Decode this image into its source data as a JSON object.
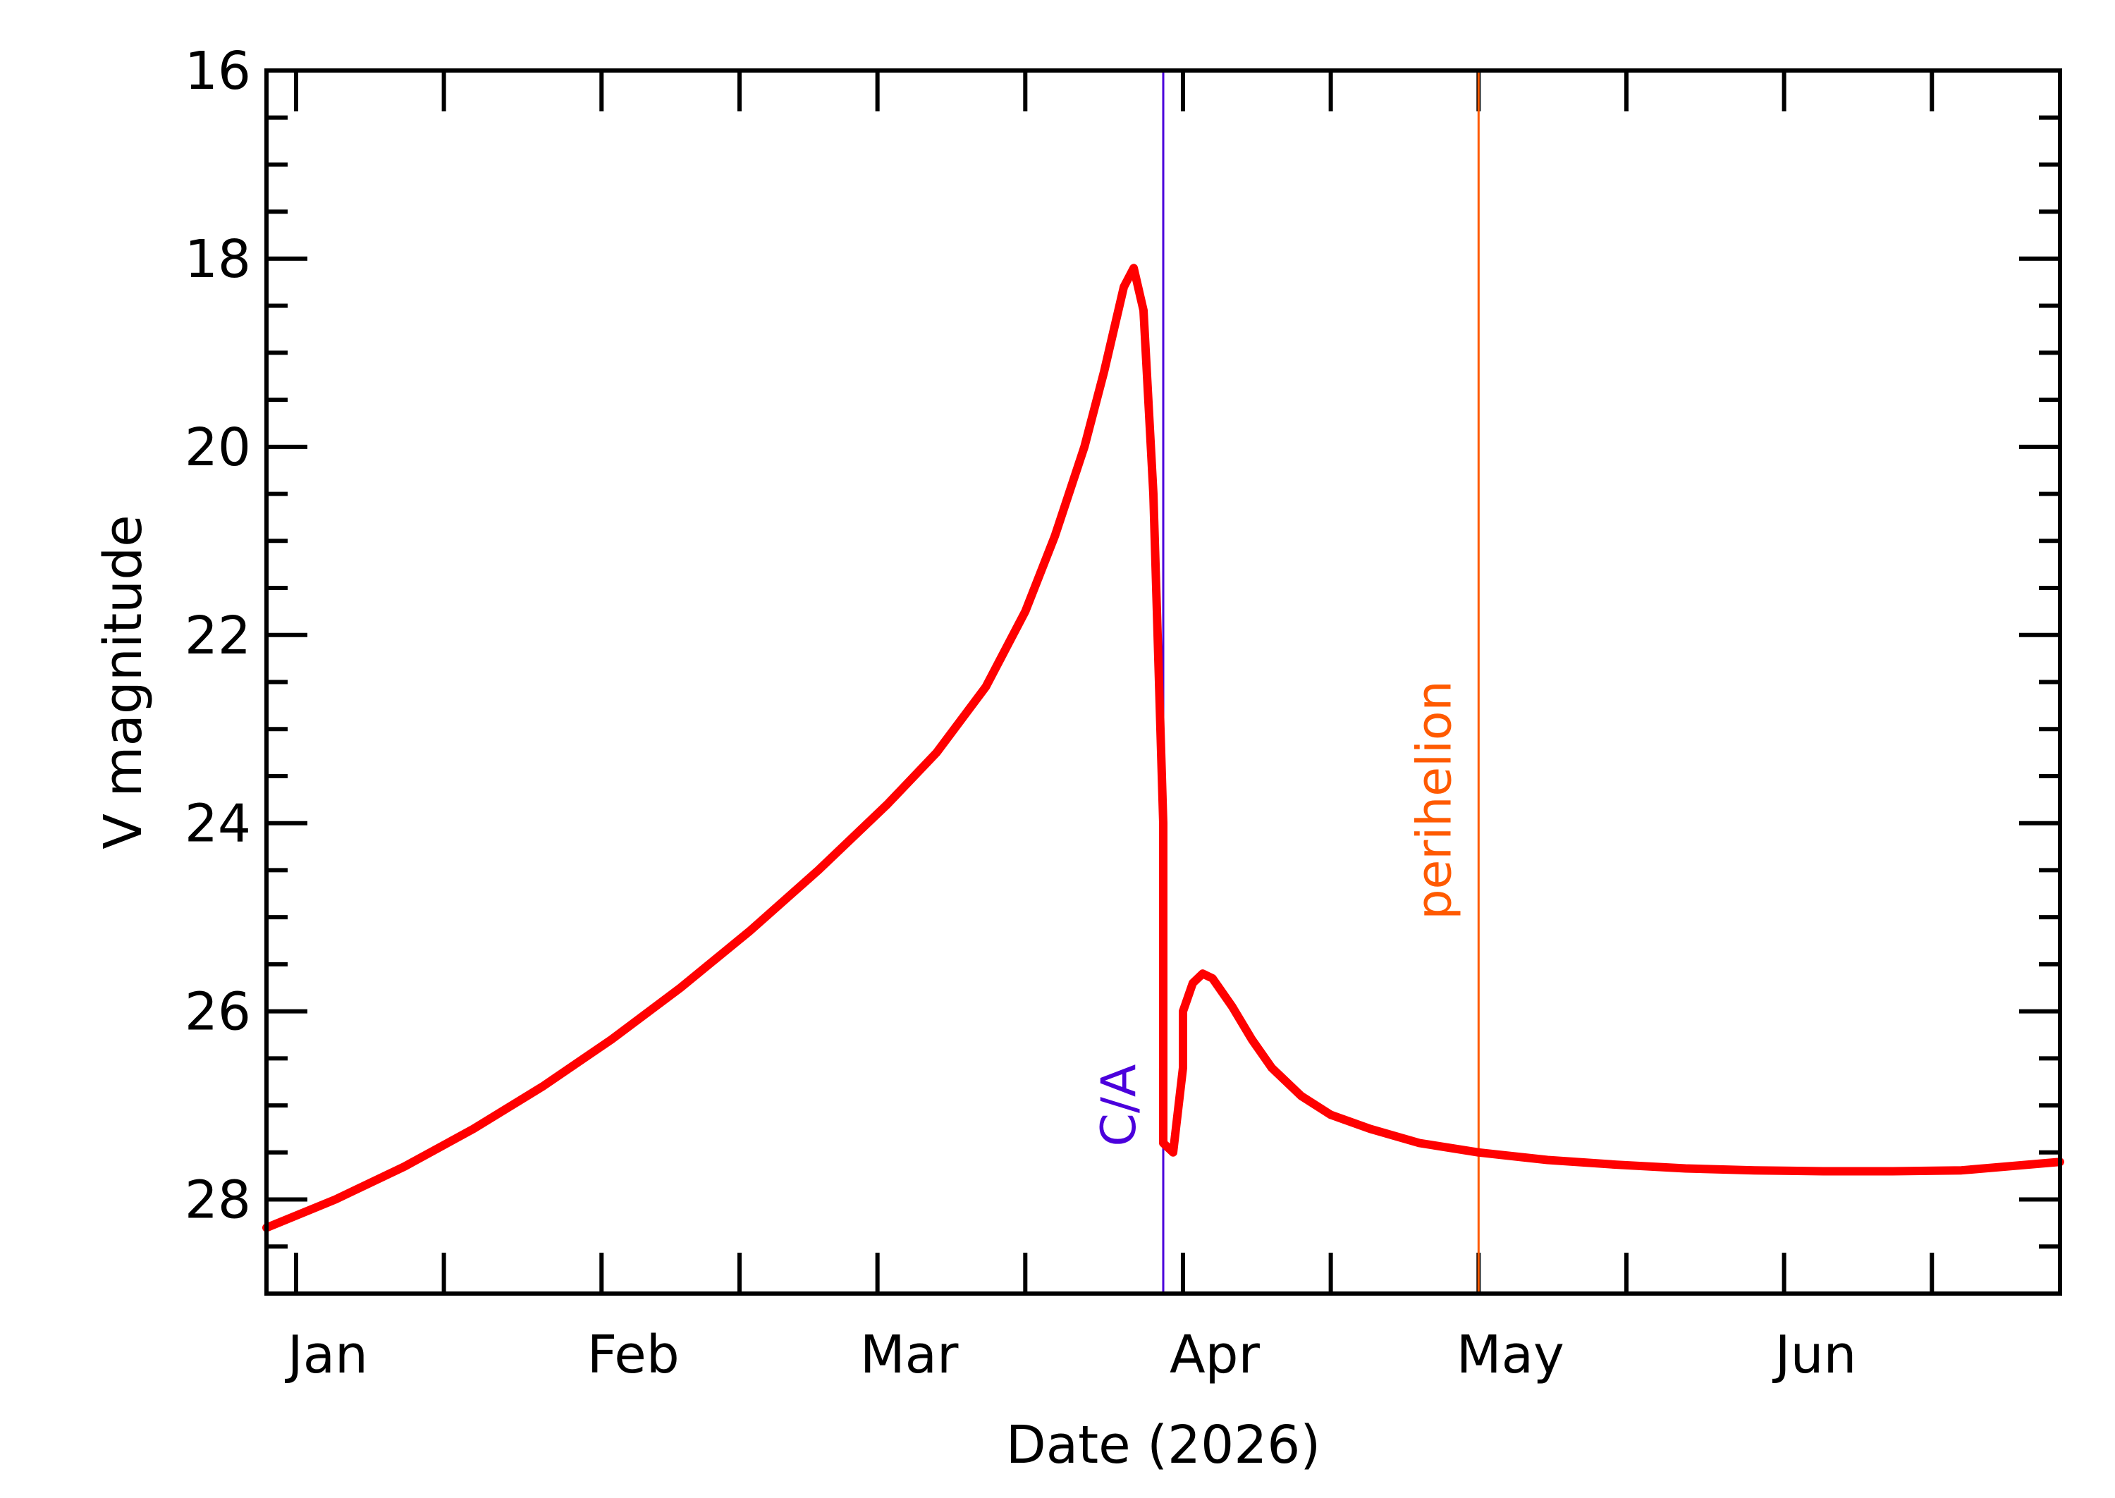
{
  "chart_data": {
    "type": "line",
    "title": "",
    "xlabel": "Date (2026)",
    "ylabel": "V magnitude",
    "x_unit": "date",
    "xlim": [
      "2025-12-29",
      "2026-06-29"
    ],
    "ylim": [
      16,
      29
    ],
    "y_inverted": true,
    "x_tick_labels": [
      {
        "date": "2026-01-01",
        "label": "Jan"
      },
      {
        "date": "2026-02-01",
        "label": "Feb"
      },
      {
        "date": "2026-03-01",
        "label": "Mar"
      },
      {
        "date": "2026-04-01",
        "label": "Apr"
      },
      {
        "date": "2026-05-01",
        "label": "May"
      },
      {
        "date": "2026-06-01",
        "label": "Jun"
      }
    ],
    "x_major_ticks": [
      "2026-01-01",
      "2026-02-01",
      "2026-03-01",
      "2026-04-01",
      "2026-05-01",
      "2026-06-01"
    ],
    "x_minor_ticks": [
      "2026-01-16",
      "2026-02-15",
      "2026-03-16",
      "2026-04-16",
      "2026-05-16",
      "2026-06-16"
    ],
    "y_major_ticks": [
      16,
      18,
      20,
      22,
      24,
      26,
      28
    ],
    "y_minor_step": 0.5,
    "grid": false,
    "legend": "none",
    "series": [
      {
        "color": "#ff0000",
        "x": [
          "2025-12-29",
          "2026-01-05",
          "2026-01-12",
          "2026-01-19",
          "2026-01-26",
          "2026-02-02",
          "2026-02-09",
          "2026-02-16",
          "2026-02-23",
          "2026-03-02",
          "2026-03-07",
          "2026-03-12",
          "2026-03-16",
          "2026-03-19",
          "2026-03-22",
          "2026-03-24",
          "2026-03-26",
          "2026-03-27",
          "2026-03-28",
          "2026-03-29",
          "2026-03-30",
          "2026-03-30",
          "2026-03-31",
          "2026-04-01",
          "2026-04-01",
          "2026-04-02",
          "2026-04-03",
          "2026-04-04",
          "2026-04-06",
          "2026-04-08",
          "2026-04-10",
          "2026-04-13",
          "2026-04-16",
          "2026-04-20",
          "2026-04-25",
          "2026-05-01",
          "2026-05-08",
          "2026-05-15",
          "2026-05-22",
          "2026-05-29",
          "2026-06-05",
          "2026-06-12",
          "2026-06-19",
          "2026-06-29"
        ],
        "y": [
          28.3,
          28.0,
          27.65,
          27.25,
          26.8,
          26.3,
          25.75,
          25.15,
          24.5,
          23.8,
          23.25,
          22.55,
          21.75,
          20.95,
          20.0,
          19.2,
          18.3,
          18.1,
          18.55,
          20.5,
          24.0,
          27.4,
          27.5,
          26.6,
          26.0,
          25.7,
          25.6,
          25.65,
          25.95,
          26.3,
          26.6,
          26.9,
          27.1,
          27.25,
          27.4,
          27.5,
          27.58,
          27.63,
          27.67,
          27.69,
          27.7,
          27.7,
          27.69,
          27.6
        ]
      }
    ],
    "markers": [
      {
        "label": "C/A",
        "date": "2026-03-30",
        "color": "#4b00dc"
      },
      {
        "label": "perihelion",
        "date": "2026-05-01",
        "color": "#ff5a00"
      }
    ]
  }
}
